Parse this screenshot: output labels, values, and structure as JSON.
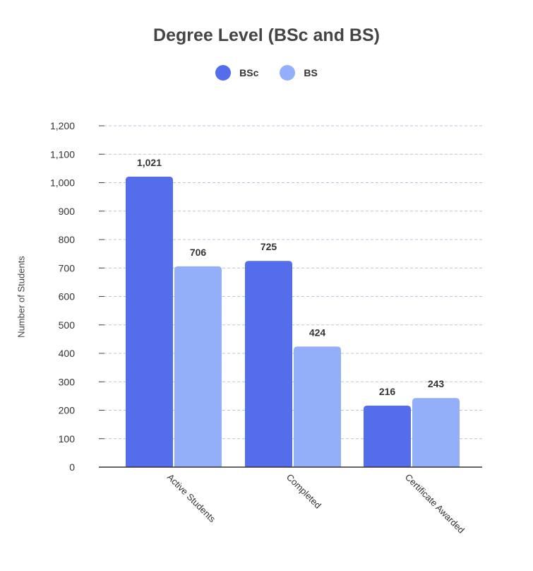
{
  "chart_data": {
    "type": "bar",
    "title": "Degree Level (BSc and BS)",
    "ylabel": "Number of Students",
    "xlabel": "",
    "categories": [
      "Active Students",
      "Completed",
      "Certificate Awarded"
    ],
    "series": [
      {
        "name": "BSc",
        "values": [
          1021,
          725,
          216
        ],
        "labels": [
          "1,021",
          "725",
          "216"
        ],
        "color": "#536DEB"
      },
      {
        "name": "BS",
        "values": [
          706,
          424,
          243
        ],
        "labels": [
          "706",
          "424",
          "243"
        ],
        "color": "#93AFFA"
      }
    ],
    "ylim": [
      0,
      1200
    ],
    "yticks": [
      {
        "value": 0,
        "label": "0"
      },
      {
        "value": 100,
        "label": "100"
      },
      {
        "value": 200,
        "label": "200"
      },
      {
        "value": 300,
        "label": "300"
      },
      {
        "value": 400,
        "label": "400"
      },
      {
        "value": 500,
        "label": "500"
      },
      {
        "value": 600,
        "label": "600"
      },
      {
        "value": 700,
        "label": "700"
      },
      {
        "value": 800,
        "label": "800"
      },
      {
        "value": 900,
        "label": "900"
      },
      {
        "value": 1000,
        "label": "1,000"
      },
      {
        "value": 1100,
        "label": "1,100"
      },
      {
        "value": 1200,
        "label": "1,200"
      }
    ],
    "grid": true,
    "legend_position": "top-center"
  }
}
